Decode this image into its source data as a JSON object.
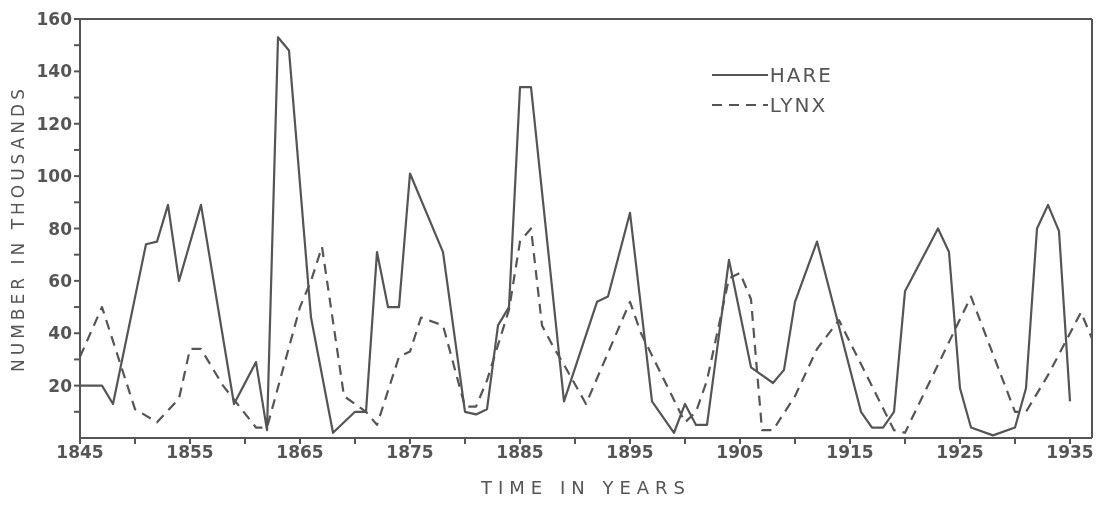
{
  "chart_data": {
    "type": "line",
    "xlabel": "TIME IN YEARS",
    "ylabel": "NUMBER IN THOUSANDS",
    "xlim": [
      1845,
      1937
    ],
    "ylim": [
      0,
      160
    ],
    "xticks": [
      1845,
      {
        "value": 1850,
        "label": null
      },
      1855,
      {
        "value": 1860,
        "label": null
      },
      1865,
      {
        "value": 1870,
        "label": null
      },
      1875,
      {
        "value": 1880,
        "label": null
      },
      1885,
      {
        "value": 1890,
        "label": null
      },
      1895,
      {
        "value": 1900,
        "label": null
      },
      1905,
      {
        "value": 1910,
        "label": null
      },
      1915,
      {
        "value": 1920,
        "label": null
      },
      1925,
      {
        "value": 1930,
        "label": null
      },
      1935
    ],
    "yticks": [
      {
        "value": 10,
        "label": null
      },
      20,
      {
        "value": 30,
        "label": null
      },
      40,
      {
        "value": 50,
        "label": null
      },
      60,
      {
        "value": 70,
        "label": null
      },
      80,
      {
        "value": 90,
        "label": null
      },
      100,
      {
        "value": 110,
        "label": null
      },
      120,
      {
        "value": 130,
        "label": null
      },
      140,
      {
        "value": 150,
        "label": null
      },
      160
    ],
    "legend": "top right",
    "marker": "none",
    "series": [
      {
        "name": "HARE",
        "color": "#555555",
        "line_style": "solid",
        "x": [
          1845,
          1847,
          1848,
          1851,
          1852,
          1853,
          1854,
          1856,
          1859,
          1861,
          1862,
          1863,
          1864,
          1866,
          1868,
          1870,
          1871,
          1872,
          1873,
          1874,
          1875,
          1878,
          1880,
          1881,
          1882,
          1883,
          1884,
          1885,
          1886,
          1889,
          1892,
          1893,
          1895,
          1897,
          1899,
          1900,
          1901,
          1902,
          1904,
          1906,
          1908,
          1909,
          1910,
          1912,
          1916,
          1917,
          1918,
          1919,
          1920,
          1923,
          1924,
          1925,
          1926,
          1928,
          1930,
          1931,
          1932,
          1933,
          1934,
          1935
        ],
        "values": [
          20,
          20,
          13,
          74,
          75,
          89,
          60,
          89,
          13,
          29,
          3,
          153,
          148,
          46,
          2,
          10,
          10,
          71,
          50,
          50,
          101,
          71,
          10,
          9,
          11,
          43,
          50,
          134,
          134,
          14,
          52,
          54,
          86,
          14,
          2,
          13,
          5,
          5,
          68,
          27,
          21,
          26,
          52,
          75,
          10,
          4,
          4,
          10,
          56,
          80,
          71,
          19,
          4,
          1,
          4,
          19,
          80,
          89,
          79,
          14
        ]
      },
      {
        "name": "LYNX",
        "color": "#555555",
        "line_style": "dashed",
        "x": [
          1845,
          1847,
          1850,
          1852,
          1854,
          1855,
          1856,
          1858,
          1861,
          1862,
          1865,
          1866,
          1867,
          1869,
          1871,
          1872,
          1874,
          1875,
          1876,
          1878,
          1880,
          1881,
          1882,
          1884,
          1885,
          1886,
          1887,
          1888,
          1889,
          1891,
          1895,
          1896,
          1900,
          1901,
          1902,
          1904,
          1905,
          1906,
          1907,
          1908,
          1910,
          1912,
          1914,
          1919,
          1920,
          1926,
          1930,
          1931,
          1933,
          1936,
          1937
        ],
        "values": [
          31,
          50,
          11,
          6,
          15,
          34,
          34,
          20,
          4,
          4,
          50,
          60,
          73,
          16,
          10,
          5,
          31,
          33,
          46,
          43,
          12,
          12,
          22,
          49,
          75,
          80,
          43,
          35,
          28,
          13,
          52,
          40,
          6,
          10,
          22,
          61,
          63,
          53,
          3,
          3,
          16,
          34,
          45,
          3,
          2,
          54,
          10,
          10,
          24,
          48,
          38
        ]
      }
    ]
  }
}
